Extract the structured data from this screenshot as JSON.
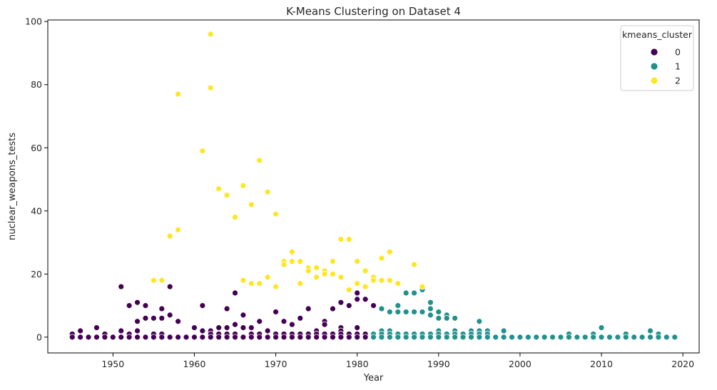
{
  "chart_data": {
    "type": "scatter",
    "title": "K-Means Clustering on Dataset 4",
    "xlabel": "Year",
    "ylabel": "nuclear_weapons_tests",
    "xlim": [
      1942,
      2022
    ],
    "ylim": [
      -5,
      100.5
    ],
    "xticks": [
      1950,
      1960,
      1970,
      1980,
      1990,
      2000,
      2010,
      2020
    ],
    "yticks": [
      0,
      20,
      40,
      60,
      80,
      100
    ],
    "grid": false,
    "legend": {
      "title": "kmeans_cluster",
      "position": "top-right"
    },
    "series": [
      {
        "name": "0",
        "color": "#440154",
        "points": [
          [
            1945,
            1
          ],
          [
            1945,
            0
          ],
          [
            1946,
            2
          ],
          [
            1946,
            0
          ],
          [
            1947,
            0
          ],
          [
            1948,
            3
          ],
          [
            1948,
            0
          ],
          [
            1949,
            1
          ],
          [
            1949,
            0
          ],
          [
            1950,
            0
          ],
          [
            1951,
            16
          ],
          [
            1951,
            2
          ],
          [
            1951,
            0
          ],
          [
            1952,
            10
          ],
          [
            1952,
            1
          ],
          [
            1952,
            0
          ],
          [
            1953,
            11
          ],
          [
            1953,
            5
          ],
          [
            1953,
            2
          ],
          [
            1953,
            0
          ],
          [
            1954,
            10
          ],
          [
            1954,
            6
          ],
          [
            1954,
            0
          ],
          [
            1955,
            6
          ],
          [
            1955,
            1
          ],
          [
            1955,
            0
          ],
          [
            1956,
            9
          ],
          [
            1956,
            6
          ],
          [
            1956,
            1
          ],
          [
            1956,
            0
          ],
          [
            1957,
            16
          ],
          [
            1957,
            7
          ],
          [
            1957,
            0
          ],
          [
            1958,
            5
          ],
          [
            1958,
            0
          ],
          [
            1959,
            0
          ],
          [
            1960,
            3
          ],
          [
            1960,
            0
          ],
          [
            1961,
            10
          ],
          [
            1961,
            2
          ],
          [
            1961,
            0
          ],
          [
            1962,
            2
          ],
          [
            1962,
            1
          ],
          [
            1962,
            0
          ],
          [
            1963,
            3
          ],
          [
            1963,
            1
          ],
          [
            1963,
            0
          ],
          [
            1964,
            9
          ],
          [
            1964,
            3
          ],
          [
            1964,
            1
          ],
          [
            1964,
            0
          ],
          [
            1965,
            14
          ],
          [
            1965,
            4
          ],
          [
            1965,
            1
          ],
          [
            1965,
            0
          ],
          [
            1966,
            7
          ],
          [
            1966,
            3
          ],
          [
            1966,
            0
          ],
          [
            1967,
            3
          ],
          [
            1967,
            1
          ],
          [
            1967,
            0
          ],
          [
            1968,
            5
          ],
          [
            1968,
            1
          ],
          [
            1968,
            0
          ],
          [
            1969,
            2
          ],
          [
            1969,
            0
          ],
          [
            1970,
            8
          ],
          [
            1970,
            1
          ],
          [
            1970,
            0
          ],
          [
            1971,
            5
          ],
          [
            1971,
            1
          ],
          [
            1971,
            0
          ],
          [
            1972,
            4
          ],
          [
            1972,
            1
          ],
          [
            1972,
            0
          ],
          [
            1973,
            6
          ],
          [
            1973,
            1
          ],
          [
            1973,
            0
          ],
          [
            1974,
            9
          ],
          [
            1974,
            1
          ],
          [
            1974,
            0
          ],
          [
            1975,
            2
          ],
          [
            1975,
            1
          ],
          [
            1975,
            0
          ],
          [
            1976,
            5
          ],
          [
            1976,
            4
          ],
          [
            1976,
            1
          ],
          [
            1976,
            0
          ],
          [
            1977,
            9
          ],
          [
            1977,
            1
          ],
          [
            1977,
            0
          ],
          [
            1978,
            11
          ],
          [
            1978,
            3
          ],
          [
            1978,
            2
          ],
          [
            1978,
            1
          ],
          [
            1978,
            0
          ],
          [
            1979,
            10
          ],
          [
            1979,
            1
          ],
          [
            1979,
            0
          ],
          [
            1980,
            14
          ],
          [
            1980,
            12
          ],
          [
            1980,
            3
          ],
          [
            1980,
            1
          ],
          [
            1980,
            0
          ],
          [
            1981,
            12
          ],
          [
            1981,
            1
          ],
          [
            1981,
            0
          ],
          [
            1982,
            10
          ]
        ]
      },
      {
        "name": "1",
        "color": "#21918c",
        "points": [
          [
            1982,
            1
          ],
          [
            1982,
            0
          ],
          [
            1983,
            9
          ],
          [
            1983,
            2
          ],
          [
            1983,
            1
          ],
          [
            1983,
            0
          ],
          [
            1984,
            8
          ],
          [
            1984,
            2
          ],
          [
            1984,
            1
          ],
          [
            1984,
            0
          ],
          [
            1985,
            10
          ],
          [
            1985,
            8
          ],
          [
            1985,
            1
          ],
          [
            1985,
            0
          ],
          [
            1986,
            14
          ],
          [
            1986,
            8
          ],
          [
            1986,
            1
          ],
          [
            1986,
            0
          ],
          [
            1987,
            14
          ],
          [
            1987,
            8
          ],
          [
            1987,
            1
          ],
          [
            1987,
            0
          ],
          [
            1988,
            15
          ],
          [
            1988,
            8
          ],
          [
            1988,
            1
          ],
          [
            1988,
            0
          ],
          [
            1989,
            11
          ],
          [
            1989,
            9
          ],
          [
            1989,
            7
          ],
          [
            1989,
            1
          ],
          [
            1989,
            0
          ],
          [
            1990,
            8
          ],
          [
            1990,
            6
          ],
          [
            1990,
            2
          ],
          [
            1990,
            1
          ],
          [
            1990,
            0
          ],
          [
            1991,
            7
          ],
          [
            1991,
            6
          ],
          [
            1991,
            1
          ],
          [
            1991,
            0
          ],
          [
            1992,
            6
          ],
          [
            1992,
            2
          ],
          [
            1992,
            1
          ],
          [
            1992,
            0
          ],
          [
            1993,
            1
          ],
          [
            1993,
            0
          ],
          [
            1994,
            2
          ],
          [
            1994,
            1
          ],
          [
            1994,
            0
          ],
          [
            1995,
            5
          ],
          [
            1995,
            2
          ],
          [
            1995,
            1
          ],
          [
            1995,
            0
          ],
          [
            1996,
            2
          ],
          [
            1996,
            1
          ],
          [
            1996,
            0
          ],
          [
            1997,
            0
          ],
          [
            1998,
            2
          ],
          [
            1998,
            0
          ],
          [
            1999,
            0
          ],
          [
            2000,
            0
          ],
          [
            2001,
            0
          ],
          [
            2002,
            0
          ],
          [
            2003,
            0
          ],
          [
            2004,
            0
          ],
          [
            2005,
            0
          ],
          [
            2006,
            1
          ],
          [
            2006,
            0
          ],
          [
            2007,
            0
          ],
          [
            2008,
            0
          ],
          [
            2009,
            1
          ],
          [
            2009,
            0
          ],
          [
            2010,
            3
          ],
          [
            2010,
            0
          ],
          [
            2011,
            0
          ],
          [
            2012,
            0
          ],
          [
            2013,
            1
          ],
          [
            2013,
            0
          ],
          [
            2014,
            0
          ],
          [
            2015,
            0
          ],
          [
            2016,
            2
          ],
          [
            2016,
            0
          ],
          [
            2017,
            1
          ],
          [
            2017,
            0
          ],
          [
            2018,
            0
          ],
          [
            2019,
            0
          ]
        ]
      },
      {
        "name": "2",
        "color": "#fde725",
        "points": [
          [
            1955,
            18
          ],
          [
            1956,
            18
          ],
          [
            1957,
            32
          ],
          [
            1958,
            77
          ],
          [
            1958,
            34
          ],
          [
            1961,
            59
          ],
          [
            1962,
            96
          ],
          [
            1962,
            79
          ],
          [
            1963,
            47
          ],
          [
            1964,
            45
          ],
          [
            1965,
            38
          ],
          [
            1966,
            48
          ],
          [
            1966,
            18
          ],
          [
            1967,
            42
          ],
          [
            1967,
            17
          ],
          [
            1968,
            56
          ],
          [
            1968,
            17
          ],
          [
            1969,
            46
          ],
          [
            1969,
            19
          ],
          [
            1970,
            39
          ],
          [
            1970,
            16
          ],
          [
            1971,
            24
          ],
          [
            1971,
            23
          ],
          [
            1972,
            27
          ],
          [
            1972,
            24
          ],
          [
            1973,
            24
          ],
          [
            1973,
            17
          ],
          [
            1974,
            22
          ],
          [
            1974,
            21
          ],
          [
            1975,
            22
          ],
          [
            1975,
            19
          ],
          [
            1976,
            21
          ],
          [
            1976,
            20
          ],
          [
            1977,
            24
          ],
          [
            1977,
            20
          ],
          [
            1978,
            31
          ],
          [
            1978,
            19
          ],
          [
            1979,
            31
          ],
          [
            1979,
            15
          ],
          [
            1980,
            24
          ],
          [
            1980,
            17
          ],
          [
            1981,
            21
          ],
          [
            1981,
            16
          ],
          [
            1982,
            19
          ],
          [
            1982,
            18
          ],
          [
            1983,
            25
          ],
          [
            1983,
            18
          ],
          [
            1984,
            27
          ],
          [
            1984,
            18
          ],
          [
            1985,
            17
          ],
          [
            1987,
            23
          ],
          [
            1988,
            16
          ]
        ]
      }
    ]
  }
}
